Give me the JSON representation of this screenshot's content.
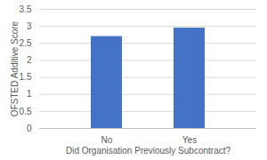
{
  "chart_data": {
    "type": "bar",
    "x_label": "Did Organisation Previously Subcontract?",
    "y_label": "OFSTED Additive Score",
    "categories": [
      "No",
      "Yes"
    ],
    "values": [
      2.7,
      2.95
    ],
    "color": "#4472c4",
    "ylim": [
      0,
      3.5
    ],
    "yticks": [
      0,
      0.5,
      1,
      1.5,
      2,
      2.5,
      3,
      3.5
    ],
    "grid": true
  }
}
